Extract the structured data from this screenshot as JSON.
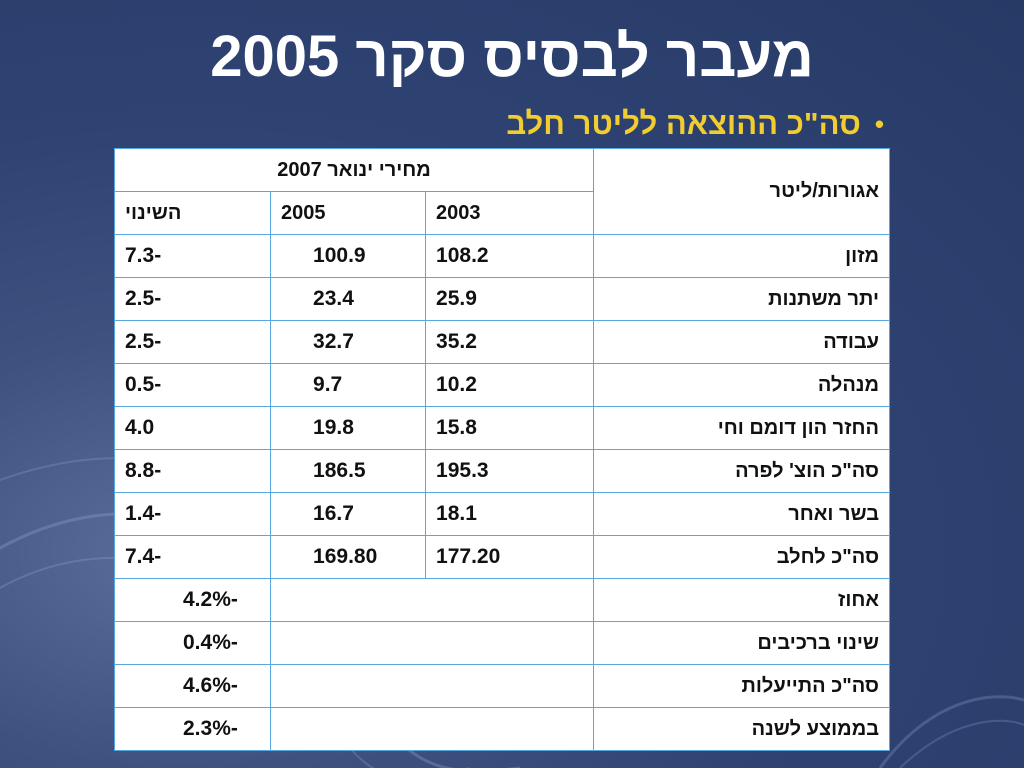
{
  "slide": {
    "title": "מעבר לבסיס סקר 2005",
    "bullet": "סה\"כ ההוצאה לליטר חלב"
  },
  "table": {
    "header_unit": "אגורות/ליטר",
    "header_group": "מחירי ינואר 2007",
    "col_2003": "2003",
    "col_2005": "2005",
    "col_change": "השינוי",
    "rows": [
      {
        "label": "מזון",
        "v2003": "108.2",
        "v2005": "100.9",
        "change": "-7.3"
      },
      {
        "label": "יתר משתנות",
        "v2003": "25.9",
        "v2005": "23.4",
        "change": "-2.5"
      },
      {
        "label": "עבודה",
        "v2003": "35.2",
        "v2005": "32.7",
        "change": "-2.5"
      },
      {
        "label": "מנהלה",
        "v2003": "10.2",
        "v2005": "9.7",
        "change": "-0.5"
      },
      {
        "label": "החזר הון דומם וחי",
        "v2003": "15.8",
        "v2005": "19.8",
        "change": "4.0"
      },
      {
        "label": "סה\"כ הוצ' לפרה",
        "v2003": "195.3",
        "v2005": "186.5",
        "change": "-8.8"
      },
      {
        "label": "בשר ואחר",
        "v2003": "18.1",
        "v2005": "16.7",
        "change": "-1.4"
      },
      {
        "label": "סה\"כ לחלב",
        "v2003": "177.20",
        "v2005": "169.80",
        "change": "-7.4"
      }
    ],
    "pct_rows": [
      {
        "label": "אחוז",
        "value": "-4.2%"
      },
      {
        "label": "שינוי ברכיבים",
        "value": "-0.4%"
      },
      {
        "label": "סה\"כ התייעלות",
        "value": "-4.6%"
      },
      {
        "label": "בממוצע לשנה",
        "value": "-2.3%"
      }
    ]
  }
}
